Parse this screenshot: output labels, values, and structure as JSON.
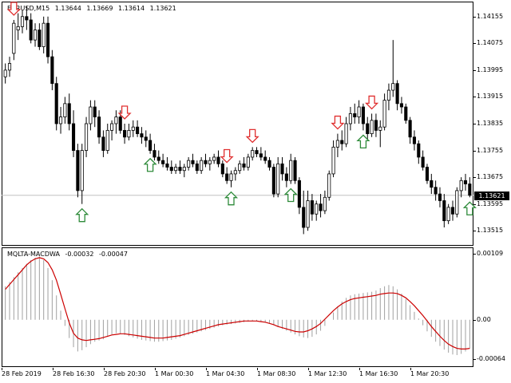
{
  "symbol_label": "EURUSD,M15",
  "ohlc": {
    "open": "1.13644",
    "high": "1.13669",
    "low": "1.13614",
    "close": "1.13621"
  },
  "price_axis": [
    "1.14155",
    "1.14075",
    "1.13995",
    "1.13915",
    "1.13835",
    "1.13755",
    "1.13675",
    "1.13595",
    "1.13515"
  ],
  "current_price": "1.13621",
  "indicator": {
    "name": "MQLTA-MACDWA",
    "value1": "-0.00032",
    "value2": "-0.00047"
  },
  "indicator_axis": [
    "0.00109",
    "0.00",
    "-0.00064"
  ],
  "time_axis": [
    "28 Feb 2019",
    "28 Feb 16:30",
    "28 Feb 20:30",
    "1 Mar 00:30",
    "1 Mar 04:30",
    "1 Mar 08:30",
    "1 Mar 12:30",
    "1 Mar 16:30",
    "1 Mar 20:30"
  ],
  "colors": {
    "bull": "#000000",
    "bear": "#000000",
    "bull_body": "#ffffff",
    "arrow_up": "#2e8b3a",
    "arrow_down": "#e03030",
    "signal_line": "#cc0000",
    "histogram": "#a0a0a0",
    "current_line": "#c0c0c0"
  },
  "chart_data": {
    "type": "candlestick",
    "ylim": [
      1.13475,
      1.14195
    ],
    "candles": [
      [
        1.13975,
        1.14015,
        1.13955,
        1.13995
      ],
      [
        1.13995,
        1.14035,
        1.13975,
        1.14015
      ],
      [
        1.14045,
        1.14145,
        1.14025,
        1.14135
      ],
      [
        1.14115,
        1.14165,
        1.14085,
        1.14125
      ],
      [
        1.14125,
        1.14175,
        1.14105,
        1.14155
      ],
      [
        1.14155,
        1.14185,
        1.14115,
        1.14145
      ],
      [
        1.14145,
        1.14165,
        1.14075,
        1.14085
      ],
      [
        1.14085,
        1.14135,
        1.14065,
        1.14115
      ],
      [
        1.14115,
        1.14135,
        1.14055,
        1.14065
      ],
      [
        1.14065,
        1.14155,
        1.14045,
        1.14135
      ],
      [
        1.14135,
        1.14155,
        1.14015,
        1.14035
      ],
      [
        1.14035,
        1.14055,
        1.13935,
        1.13955
      ],
      [
        1.13955,
        1.13975,
        1.13815,
        1.13835
      ],
      [
        1.13835,
        1.13885,
        1.13805,
        1.13855
      ],
      [
        1.13855,
        1.13915,
        1.13835,
        1.13895
      ],
      [
        1.13895,
        1.13925,
        1.13815,
        1.13835
      ],
      [
        1.13835,
        1.13875,
        1.13735,
        1.13755
      ],
      [
        1.13755,
        1.13775,
        1.13615,
        1.13635
      ],
      [
        1.13635,
        1.13775,
        1.13595,
        1.13755
      ],
      [
        1.13755,
        1.13855,
        1.13735,
        1.13835
      ],
      [
        1.13835,
        1.13905,
        1.13815,
        1.13885
      ],
      [
        1.13885,
        1.13905,
        1.13825,
        1.13855
      ],
      [
        1.13855,
        1.13875,
        1.13775,
        1.13795
      ],
      [
        1.13795,
        1.13815,
        1.13735,
        1.13755
      ],
      [
        1.13755,
        1.13835,
        1.13745,
        1.13815
      ],
      [
        1.13815,
        1.13845,
        1.13785,
        1.13835
      ],
      [
        1.13835,
        1.13875,
        1.13805,
        1.13855
      ],
      [
        1.13855,
        1.13875,
        1.13805,
        1.13815
      ],
      [
        1.13815,
        1.13835,
        1.13775,
        1.13795
      ],
      [
        1.13795,
        1.13835,
        1.13785,
        1.13815
      ],
      [
        1.13815,
        1.13845,
        1.13795,
        1.13825
      ],
      [
        1.13825,
        1.13845,
        1.13795,
        1.13805
      ],
      [
        1.13805,
        1.13825,
        1.13775,
        1.13795
      ],
      [
        1.13795,
        1.13815,
        1.13765,
        1.13785
      ],
      [
        1.13785,
        1.13805,
        1.13745,
        1.13755
      ],
      [
        1.13755,
        1.13775,
        1.13725,
        1.13735
      ],
      [
        1.13735,
        1.13755,
        1.13715,
        1.13725
      ],
      [
        1.13725,
        1.13745,
        1.13705,
        1.13715
      ],
      [
        1.13715,
        1.13735,
        1.13695,
        1.13705
      ],
      [
        1.13705,
        1.13725,
        1.13685,
        1.13695
      ],
      [
        1.13695,
        1.13715,
        1.13685,
        1.13705
      ],
      [
        1.13705,
        1.13725,
        1.13685,
        1.13695
      ],
      [
        1.13695,
        1.13715,
        1.13675,
        1.13705
      ],
      [
        1.13705,
        1.13735,
        1.13695,
        1.13725
      ],
      [
        1.13725,
        1.13745,
        1.13705,
        1.13715
      ],
      [
        1.13715,
        1.13725,
        1.13685,
        1.13695
      ],
      [
        1.13695,
        1.13735,
        1.13685,
        1.13725
      ],
      [
        1.13725,
        1.13745,
        1.13705,
        1.13715
      ],
      [
        1.13715,
        1.13735,
        1.13695,
        1.13725
      ],
      [
        1.13725,
        1.13745,
        1.13715,
        1.13735
      ],
      [
        1.13735,
        1.13755,
        1.13705,
        1.13715
      ],
      [
        1.13715,
        1.13725,
        1.13675,
        1.13685
      ],
      [
        1.13685,
        1.13705,
        1.13655,
        1.13665
      ],
      [
        1.13665,
        1.13695,
        1.13645,
        1.13685
      ],
      [
        1.13685,
        1.13705,
        1.13665,
        1.13695
      ],
      [
        1.13695,
        1.13725,
        1.13685,
        1.13715
      ],
      [
        1.13715,
        1.13735,
        1.13695,
        1.13705
      ],
      [
        1.13705,
        1.13745,
        1.13695,
        1.13735
      ],
      [
        1.13735,
        1.13765,
        1.13725,
        1.13755
      ],
      [
        1.13755,
        1.13765,
        1.13735,
        1.13745
      ],
      [
        1.13745,
        1.13765,
        1.13725,
        1.13735
      ],
      [
        1.13735,
        1.13755,
        1.13715,
        1.13725
      ],
      [
        1.13725,
        1.13735,
        1.13695,
        1.13705
      ],
      [
        1.13705,
        1.13715,
        1.13615,
        1.13625
      ],
      [
        1.13625,
        1.13735,
        1.13615,
        1.13715
      ],
      [
        1.13715,
        1.13735,
        1.13665,
        1.13685
      ],
      [
        1.13685,
        1.13705,
        1.13645,
        1.13665
      ],
      [
        1.13665,
        1.13745,
        1.13655,
        1.13725
      ],
      [
        1.13725,
        1.13735,
        1.13655,
        1.13665
      ],
      [
        1.13665,
        1.13675,
        1.13565,
        1.13585
      ],
      [
        1.13585,
        1.13635,
        1.13505,
        1.13525
      ],
      [
        1.13525,
        1.13635,
        1.13515,
        1.13605
      ],
      [
        1.13605,
        1.13625,
        1.13545,
        1.13565
      ],
      [
        1.13565,
        1.13605,
        1.13545,
        1.13595
      ],
      [
        1.13595,
        1.13625,
        1.13555,
        1.13575
      ],
      [
        1.13575,
        1.13635,
        1.13565,
        1.13615
      ],
      [
        1.13615,
        1.13695,
        1.13605,
        1.13685
      ],
      [
        1.13685,
        1.13785,
        1.13675,
        1.13765
      ],
      [
        1.13765,
        1.13805,
        1.13735,
        1.13785
      ],
      [
        1.13785,
        1.13815,
        1.13755,
        1.13775
      ],
      [
        1.13775,
        1.13855,
        1.13765,
        1.13835
      ],
      [
        1.13835,
        1.13885,
        1.13815,
        1.13865
      ],
      [
        1.13865,
        1.13895,
        1.13835,
        1.13855
      ],
      [
        1.13855,
        1.13905,
        1.13835,
        1.13885
      ],
      [
        1.13885,
        1.13895,
        1.13815,
        1.13835
      ],
      [
        1.13835,
        1.13855,
        1.13785,
        1.13805
      ],
      [
        1.13805,
        1.13865,
        1.13795,
        1.13845
      ],
      [
        1.13845,
        1.13865,
        1.13795,
        1.13815
      ],
      [
        1.13815,
        1.13845,
        1.13765,
        1.13825
      ],
      [
        1.13825,
        1.13925,
        1.13815,
        1.13905
      ],
      [
        1.13905,
        1.13955,
        1.13875,
        1.13935
      ],
      [
        1.13935,
        1.14085,
        1.13915,
        1.13955
      ],
      [
        1.13955,
        1.13965,
        1.13875,
        1.13895
      ],
      [
        1.13895,
        1.13915,
        1.13865,
        1.13885
      ],
      [
        1.13885,
        1.13895,
        1.13835,
        1.13845
      ],
      [
        1.13845,
        1.13855,
        1.13775,
        1.13795
      ],
      [
        1.13795,
        1.13815,
        1.13755,
        1.13775
      ],
      [
        1.13775,
        1.13785,
        1.13715,
        1.13735
      ],
      [
        1.13735,
        1.13755,
        1.13695,
        1.13705
      ],
      [
        1.13705,
        1.13715,
        1.13655,
        1.13665
      ],
      [
        1.13665,
        1.13685,
        1.13625,
        1.13645
      ],
      [
        1.13645,
        1.13665,
        1.13605,
        1.13625
      ],
      [
        1.13625,
        1.13645,
        1.13585,
        1.13605
      ],
      [
        1.13605,
        1.13625,
        1.13525,
        1.13545
      ],
      [
        1.13545,
        1.13595,
        1.13535,
        1.13585
      ],
      [
        1.13585,
        1.13605,
        1.13545,
        1.13565
      ],
      [
        1.13565,
        1.13645,
        1.13555,
        1.13635
      ],
      [
        1.13635,
        1.13675,
        1.13615,
        1.13665
      ],
      [
        1.13665,
        1.13685,
        1.13635,
        1.13655
      ],
      [
        1.13655,
        1.13675,
        1.13615,
        1.13621
      ]
    ],
    "arrows_up": [
      18,
      34,
      53,
      67,
      84,
      109
    ],
    "arrows_down": [
      2,
      28,
      52,
      58,
      78,
      86
    ],
    "indicator_range": [
      -0.00075,
      0.00115
    ],
    "histogram": [
      0.00055,
      0.00062,
      0.0007,
      0.00078,
      0.00085,
      0.00092,
      0.00098,
      0.00102,
      0.00104,
      0.00098,
      0.00085,
      0.00065,
      0.0004,
      0.00015,
      -0.0001,
      -0.0003,
      -0.00045,
      -0.00052,
      -0.0005,
      -0.00045,
      -0.0004,
      -0.00036,
      -0.00034,
      -0.00032,
      -0.00028,
      -0.00024,
      -0.00022,
      -0.00023,
      -0.00025,
      -0.00027,
      -0.00029,
      -0.00031,
      -0.00033,
      -0.00034,
      -0.00035,
      -0.00036,
      -0.00036,
      -0.00035,
      -0.00034,
      -0.00033,
      -0.00031,
      -0.00029,
      -0.00027,
      -0.00025,
      -0.00023,
      -0.00021,
      -0.00019,
      -0.00017,
      -0.00015,
      -0.00013,
      -0.00011,
      -9e-05,
      -8e-05,
      -7e-05,
      -6e-05,
      -5e-05,
      -4e-05,
      -3e-05,
      -2e-05,
      -2e-05,
      -3e-05,
      -4e-05,
      -6e-05,
      -9e-05,
      -0.00012,
      -0.00015,
      -0.00018,
      -0.00021,
      -0.00024,
      -0.00027,
      -0.00029,
      -0.0003,
      -0.00028,
      -0.00024,
      -0.00018,
      -0.0001,
      0.0,
      0.00012,
      0.00022,
      0.0003,
      0.00036,
      0.0004,
      0.00042,
      0.00043,
      0.00044,
      0.00045,
      0.00046,
      0.00048,
      0.00052,
      0.00055,
      0.00057,
      0.00055,
      0.0005,
      0.00043,
      0.00034,
      0.00024,
      0.00013,
      2e-05,
      -9e-05,
      -0.00019,
      -0.00028,
      -0.00036,
      -0.00043,
      -0.00049,
      -0.00054,
      -0.00057,
      -0.00058,
      -0.00056,
      -0.00052,
      -0.00047
    ],
    "signal_line": [
      0.0005,
      0.00058,
      0.00066,
      0.00074,
      0.00082,
      0.0009,
      0.00096,
      0.001,
      0.00102,
      0.001,
      0.00094,
      0.00082,
      0.00065,
      0.00042,
      0.00018,
      -5e-05,
      -0.00022,
      -0.0003,
      -0.00033,
      -0.00034,
      -0.00033,
      -0.00032,
      -0.00031,
      -0.00029,
      -0.00027,
      -0.00025,
      -0.00024,
      -0.00023,
      -0.00023,
      -0.00024,
      -0.00025,
      -0.00026,
      -0.00027,
      -0.00028,
      -0.00029,
      -0.0003,
      -0.0003,
      -0.0003,
      -0.00029,
      -0.00028,
      -0.00027,
      -0.00026,
      -0.00024,
      -0.00022,
      -0.0002,
      -0.00018,
      -0.00016,
      -0.00014,
      -0.00012,
      -0.0001,
      -8e-05,
      -7e-05,
      -6e-05,
      -5e-05,
      -4e-05,
      -3e-05,
      -2e-05,
      -2e-05,
      -2e-05,
      -2e-05,
      -3e-05,
      -4e-05,
      -6e-05,
      -8e-05,
      -0.00011,
      -0.00013,
      -0.00015,
      -0.00017,
      -0.00019,
      -0.0002,
      -0.0002,
      -0.00018,
      -0.00015,
      -0.00011,
      -6e-05,
      1e-05,
      8e-05,
      0.00015,
      0.00021,
      0.00026,
      0.0003,
      0.00033,
      0.00035,
      0.00036,
      0.00037,
      0.00038,
      0.00039,
      0.0004,
      0.00042,
      0.00043,
      0.00044,
      0.00044,
      0.00043,
      0.0004,
      0.00036,
      0.0003,
      0.00023,
      0.00015,
      7e-05,
      -2e-05,
      -0.00011,
      -0.00019,
      -0.00027,
      -0.00034,
      -0.0004,
      -0.00044,
      -0.00047,
      -0.00048,
      -0.00048,
      -0.00047
    ]
  }
}
